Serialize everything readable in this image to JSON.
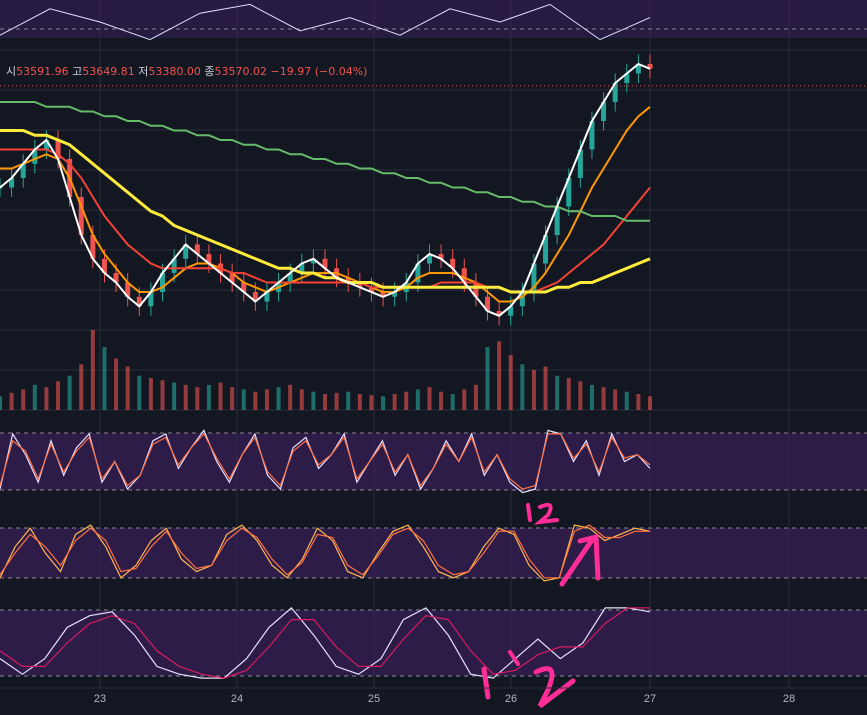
{
  "legend": {
    "open_label": "시",
    "open_value": "53591.96",
    "high_label": "고",
    "high_value": "53649.81",
    "low_label": "저",
    "low_value": "53380.00",
    "close_label": "종",
    "close_value": "53570.02",
    "change": "−19.97 (−0.04%)"
  },
  "chart_data": {
    "type": "candlestick",
    "x_tick_labels": [
      "23",
      "24",
      "25",
      "26",
      "27",
      "28"
    ],
    "price_series_close": [
      70,
      72,
      75,
      78,
      80,
      76,
      68,
      60,
      55,
      52,
      50,
      47,
      45,
      48,
      52,
      55,
      58,
      56,
      54,
      52,
      50,
      48,
      46,
      48,
      50,
      52,
      54,
      55,
      53,
      51,
      50,
      49,
      48,
      47,
      48,
      50,
      54,
      56,
      55,
      53,
      50,
      47,
      44,
      43,
      45,
      48,
      54,
      60,
      66,
      72,
      78,
      84,
      88,
      92,
      94,
      96,
      95
    ],
    "moving_averages": [
      {
        "color": "#ff9800",
        "values": [
          74,
          74,
          75,
          76,
          77,
          76,
          72,
          66,
          60,
          56,
          53,
          50,
          48,
          48,
          49,
          51,
          53,
          54,
          54,
          53,
          52,
          50,
          49,
          48,
          49,
          50,
          51,
          52,
          52,
          52,
          51,
          50,
          49,
          48,
          48,
          49,
          51,
          52,
          52,
          52,
          51,
          50,
          48,
          46,
          46,
          47,
          49,
          52,
          56,
          60,
          65,
          70,
          74,
          78,
          82,
          85,
          87
        ]
      },
      {
        "color": "#f44336",
        "values": [
          78,
          78,
          78,
          78,
          78,
          77,
          75,
          72,
          68,
          64,
          61,
          58,
          56,
          54,
          53,
          53,
          53,
          53,
          53,
          53,
          52,
          52,
          51,
          50,
          50,
          50,
          50,
          50,
          50,
          50,
          50,
          50,
          49,
          49,
          49,
          49,
          49,
          49,
          50,
          50,
          50,
          50,
          49,
          49,
          48,
          48,
          48,
          49,
          50,
          52,
          54,
          56,
          58,
          61,
          64,
          67,
          70
        ]
      },
      {
        "color": "#ffeb3b",
        "values": [
          82,
          82,
          82,
          81,
          81,
          80,
          79,
          77,
          75,
          73,
          71,
          69,
          67,
          65,
          64,
          62,
          61,
          60,
          59,
          58,
          57,
          56,
          55,
          54,
          53,
          53,
          52,
          52,
          51,
          51,
          50,
          50,
          50,
          49,
          49,
          49,
          49,
          49,
          49,
          49,
          49,
          49,
          49,
          49,
          48,
          48,
          48,
          48,
          49,
          49,
          50,
          50,
          51,
          52,
          53,
          54,
          55
        ]
      },
      {
        "color": "#66bb6a",
        "values": [
          88,
          88,
          88,
          88,
          87,
          87,
          87,
          86,
          86,
          85,
          85,
          84,
          84,
          83,
          83,
          82,
          82,
          81,
          81,
          80,
          80,
          79,
          79,
          78,
          78,
          77,
          77,
          76,
          76,
          75,
          75,
          74,
          74,
          73,
          73,
          72,
          72,
          71,
          71,
          70,
          70,
          69,
          69,
          68,
          68,
          67,
          67,
          66,
          66,
          65,
          65,
          64,
          64,
          64,
          63,
          63,
          63
        ]
      }
    ],
    "volume": [
      12,
      15,
      18,
      22,
      20,
      25,
      30,
      40,
      70,
      55,
      45,
      38,
      30,
      28,
      26,
      24,
      22,
      20,
      22,
      24,
      20,
      18,
      16,
      18,
      20,
      22,
      18,
      16,
      14,
      15,
      16,
      14,
      13,
      12,
      14,
      16,
      18,
      20,
      16,
      14,
      18,
      22,
      55,
      60,
      48,
      40,
      35,
      38,
      30,
      28,
      25,
      22,
      20,
      18,
      16,
      14,
      12
    ],
    "indicator_1": {
      "series": [
        {
          "name": "",
          "values": [
            0.1,
            0.9,
            0.6,
            0.2,
            0.8,
            0.3,
            0.7,
            0.9,
            0.2,
            0.5,
            0.1,
            0.3,
            0.8,
            0.9,
            0.4,
            0.7,
            0.95,
            0.5,
            0.2,
            0.6,
            0.9,
            0.3,
            0.1,
            0.7,
            0.85,
            0.4,
            0.6,
            0.9,
            0.2,
            0.5,
            0.8,
            0.3,
            0.6,
            0.1,
            0.4,
            0.8,
            0.5,
            0.9,
            0.3,
            0.6,
            0.2,
            0.05,
            0.1,
            0.95,
            0.9,
            0.5,
            0.8,
            0.3,
            0.9,
            0.5,
            0.6,
            0.4
          ]
        },
        {
          "name": "",
          "values": [
            0.15,
            0.8,
            0.65,
            0.25,
            0.75,
            0.35,
            0.65,
            0.85,
            0.25,
            0.5,
            0.15,
            0.3,
            0.75,
            0.85,
            0.45,
            0.7,
            0.9,
            0.55,
            0.25,
            0.6,
            0.85,
            0.35,
            0.15,
            0.65,
            0.8,
            0.45,
            0.6,
            0.85,
            0.25,
            0.5,
            0.75,
            0.35,
            0.6,
            0.15,
            0.4,
            0.75,
            0.5,
            0.85,
            0.35,
            0.6,
            0.25,
            0.1,
            0.15,
            0.9,
            0.9,
            0.55,
            0.75,
            0.35,
            0.85,
            0.55,
            0.6,
            0.45
          ]
        }
      ]
    },
    "indicator_2": {
      "series": [
        {
          "name": "",
          "values": [
            0.1,
            0.6,
            0.9,
            0.5,
            0.2,
            0.8,
            0.95,
            0.6,
            0.1,
            0.3,
            0.7,
            0.9,
            0.4,
            0.2,
            0.3,
            0.8,
            0.95,
            0.7,
            0.3,
            0.1,
            0.4,
            0.9,
            0.7,
            0.2,
            0.1,
            0.5,
            0.85,
            0.95,
            0.6,
            0.2,
            0.1,
            0.2,
            0.6,
            0.9,
            0.8,
            0.3,
            0.05,
            0.1,
            0.95,
            0.9,
            0.7,
            0.8,
            0.9,
            0.85
          ]
        },
        {
          "name": "",
          "values": [
            0.15,
            0.5,
            0.8,
            0.6,
            0.3,
            0.7,
            0.9,
            0.7,
            0.2,
            0.25,
            0.6,
            0.85,
            0.5,
            0.25,
            0.3,
            0.7,
            0.9,
            0.75,
            0.4,
            0.15,
            0.35,
            0.8,
            0.75,
            0.3,
            0.15,
            0.45,
            0.8,
            0.9,
            0.7,
            0.3,
            0.15,
            0.2,
            0.5,
            0.85,
            0.85,
            0.4,
            0.1,
            0.1,
            0.85,
            0.95,
            0.75,
            0.75,
            0.85,
            0.85
          ]
        }
      ]
    },
    "indicator_3": {
      "series": [
        {
          "name": "",
          "values": [
            0.3,
            0.1,
            0.3,
            0.7,
            0.85,
            0.9,
            0.6,
            0.2,
            0.1,
            0.05,
            0.05,
            0.3,
            0.7,
            0.95,
            0.6,
            0.2,
            0.1,
            0.3,
            0.8,
            0.95,
            0.6,
            0.1,
            0.05,
            0.3,
            0.55,
            0.3,
            0.5,
            0.95,
            0.95,
            0.9
          ]
        },
        {
          "name": "",
          "values": [
            0.4,
            0.2,
            0.2,
            0.5,
            0.75,
            0.85,
            0.75,
            0.4,
            0.2,
            0.1,
            0.05,
            0.15,
            0.45,
            0.8,
            0.8,
            0.45,
            0.2,
            0.2,
            0.55,
            0.85,
            0.8,
            0.4,
            0.1,
            0.15,
            0.35,
            0.45,
            0.45,
            0.75,
            0.95,
            0.95
          ]
        }
      ]
    }
  },
  "colors": {
    "background": "#131722",
    "grid": "#2a2e39",
    "up": "#26a69a",
    "down": "#ef5350",
    "band": "#3b1f5c",
    "price_line": "#ffffff",
    "annotation": "#ff2d95"
  }
}
